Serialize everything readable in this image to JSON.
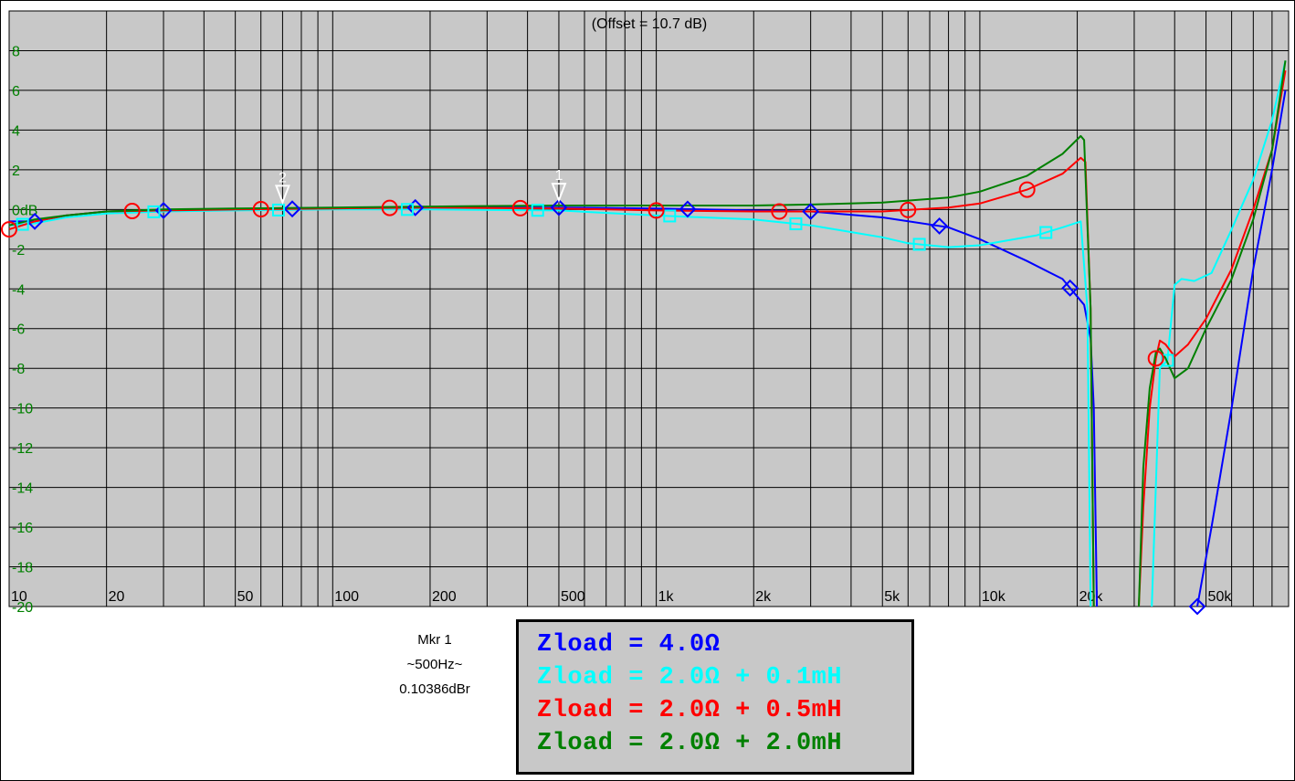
{
  "chart_data": {
    "type": "line",
    "title": "(Offset = 10.7 dB)",
    "xlabel": "",
    "ylabel": "",
    "x_scale": "log",
    "xlim": [
      10,
      90000
    ],
    "ylim": [
      -20,
      10
    ],
    "grid": true,
    "y_ticks": [
      {
        "value": 8,
        "label": "8"
      },
      {
        "value": 6,
        "label": "6"
      },
      {
        "value": 4,
        "label": "4"
      },
      {
        "value": 2,
        "label": "2"
      },
      {
        "value": 0,
        "label": "0dB"
      },
      {
        "value": -2,
        "label": "-2"
      },
      {
        "value": -4,
        "label": "-4"
      },
      {
        "value": -6,
        "label": "-6"
      },
      {
        "value": -8,
        "label": "-8"
      },
      {
        "value": -10,
        "label": "-10"
      },
      {
        "value": -12,
        "label": "-12"
      },
      {
        "value": -14,
        "label": "-14"
      },
      {
        "value": -16,
        "label": "-16"
      },
      {
        "value": -18,
        "label": "-18"
      },
      {
        "value": -20,
        "label": "-20"
      }
    ],
    "x_ticks": [
      {
        "value": 10,
        "label": "10"
      },
      {
        "value": 20,
        "label": "20"
      },
      {
        "value": 50,
        "label": "50"
      },
      {
        "value": 100,
        "label": "100"
      },
      {
        "value": 200,
        "label": "200"
      },
      {
        "value": 500,
        "label": "500"
      },
      {
        "value": 1000,
        "label": "1k"
      },
      {
        "value": 2000,
        "label": "2k"
      },
      {
        "value": 5000,
        "label": "5k"
      },
      {
        "value": 10000,
        "label": "10k"
      },
      {
        "value": 20000,
        "label": "20k"
      },
      {
        "value": 50000,
        "label": "50k"
      }
    ],
    "series": [
      {
        "name": "Zload = 4.0Ω",
        "color": "#0000ff",
        "marker": "diamond",
        "points": [
          [
            10,
            -0.6
          ],
          [
            12,
            -0.6
          ],
          [
            15,
            -0.3
          ],
          [
            20,
            -0.1
          ],
          [
            30,
            -0.05
          ],
          [
            50,
            0
          ],
          [
            100,
            0.05
          ],
          [
            200,
            0.1
          ],
          [
            500,
            0.1
          ],
          [
            1000,
            0.05
          ],
          [
            2000,
            -0.05
          ],
          [
            3000,
            -0.1
          ],
          [
            5000,
            -0.4
          ],
          [
            8000,
            -0.9
          ],
          [
            10000,
            -1.5
          ],
          [
            14000,
            -2.6
          ],
          [
            18000,
            -3.5
          ],
          [
            21000,
            -4.8
          ],
          [
            22000,
            -6.5
          ],
          [
            22500,
            -10
          ],
          [
            23000,
            -20
          ]
        ],
        "points_tail": [
          [
            47000,
            -20
          ],
          [
            52000,
            -16
          ],
          [
            60000,
            -10
          ],
          [
            70000,
            -3
          ],
          [
            80000,
            2
          ],
          [
            88000,
            6
          ]
        ],
        "marker_x": [
          12,
          30,
          75,
          180,
          500,
          1250,
          3000,
          7500,
          19000,
          47000
        ]
      },
      {
        "name": "Zload = 2.0Ω + 0.1mH",
        "color": "#00ffff",
        "marker": "square",
        "points": [
          [
            10,
            -0.8
          ],
          [
            12,
            -0.7
          ],
          [
            15,
            -0.4
          ],
          [
            20,
            -0.2
          ],
          [
            30,
            -0.1
          ],
          [
            50,
            -0.05
          ],
          [
            100,
            0
          ],
          [
            200,
            0
          ],
          [
            500,
            -0.05
          ],
          [
            1000,
            -0.3
          ],
          [
            2000,
            -0.5
          ],
          [
            3000,
            -0.8
          ],
          [
            5000,
            -1.4
          ],
          [
            6000,
            -1.7
          ],
          [
            8000,
            -1.9
          ],
          [
            10000,
            -1.8
          ],
          [
            15000,
            -1.3
          ],
          [
            18000,
            -0.9
          ],
          [
            20500,
            -0.6
          ],
          [
            21500,
            -5
          ],
          [
            22000,
            -20
          ]
        ],
        "points_tail": [
          [
            34000,
            -20
          ],
          [
            36000,
            -8
          ],
          [
            38000,
            -7.6
          ],
          [
            40000,
            -3.8
          ],
          [
            42000,
            -3.5
          ],
          [
            46000,
            -3.6
          ],
          [
            52000,
            -3.2
          ],
          [
            60000,
            -1
          ],
          [
            70000,
            1.5
          ],
          [
            80000,
            4.5
          ],
          [
            88000,
            7.5
          ]
        ],
        "marker_x": [
          11,
          28,
          68,
          170,
          430,
          1100,
          2700,
          6500,
          16000,
          38000
        ]
      },
      {
        "name": "Zload = 2.0Ω + 0.5mH",
        "color": "#ff0000",
        "marker": "circle",
        "points": [
          [
            10,
            -1
          ],
          [
            12,
            -0.6
          ],
          [
            15,
            -0.3
          ],
          [
            20,
            -0.1
          ],
          [
            30,
            -0.05
          ],
          [
            50,
            0
          ],
          [
            100,
            0.05
          ],
          [
            200,
            0.1
          ],
          [
            500,
            0.05
          ],
          [
            1000,
            -0.05
          ],
          [
            2000,
            -0.1
          ],
          [
            3000,
            -0.1
          ],
          [
            5000,
            -0.1
          ],
          [
            8000,
            0.1
          ],
          [
            10000,
            0.3
          ],
          [
            14000,
            1
          ],
          [
            18000,
            1.8
          ],
          [
            20500,
            2.6
          ],
          [
            21200,
            2.4
          ],
          [
            22000,
            -5
          ],
          [
            22500,
            -20
          ]
        ],
        "points_tail": [
          [
            31000,
            -20
          ],
          [
            32000,
            -15
          ],
          [
            33500,
            -10
          ],
          [
            35000,
            -7.5
          ],
          [
            36000,
            -6.6
          ],
          [
            37500,
            -6.8
          ],
          [
            40000,
            -7.4
          ],
          [
            44000,
            -6.8
          ],
          [
            50000,
            -5.5
          ],
          [
            60000,
            -3
          ],
          [
            70000,
            0
          ],
          [
            80000,
            3
          ],
          [
            88000,
            7
          ]
        ],
        "marker_x": [
          10,
          24,
          60,
          150,
          380,
          1000,
          2400,
          6000,
          14000,
          35000
        ]
      },
      {
        "name": "Zload = 2.0Ω + 2.0mH",
        "color": "#008000",
        "marker": "",
        "points": [
          [
            10,
            -0.8
          ],
          [
            12,
            -0.5
          ],
          [
            15,
            -0.3
          ],
          [
            20,
            -0.1
          ],
          [
            30,
            0
          ],
          [
            50,
            0.05
          ],
          [
            100,
            0.1
          ],
          [
            200,
            0.15
          ],
          [
            500,
            0.2
          ],
          [
            1000,
            0.2
          ],
          [
            2000,
            0.2
          ],
          [
            3000,
            0.25
          ],
          [
            5000,
            0.35
          ],
          [
            8000,
            0.6
          ],
          [
            10000,
            0.9
          ],
          [
            14000,
            1.7
          ],
          [
            18000,
            2.8
          ],
          [
            20500,
            3.7
          ],
          [
            21000,
            3.5
          ],
          [
            22000,
            -5
          ],
          [
            22500,
            -20
          ]
        ],
        "points_tail": [
          [
            31000,
            -20
          ],
          [
            32000,
            -13
          ],
          [
            33500,
            -9
          ],
          [
            35000,
            -7.2
          ],
          [
            36000,
            -7
          ],
          [
            37500,
            -7.5
          ],
          [
            40000,
            -8.5
          ],
          [
            44000,
            -8
          ],
          [
            50000,
            -6
          ],
          [
            60000,
            -3.5
          ],
          [
            70000,
            -0.5
          ],
          [
            80000,
            3
          ],
          [
            88000,
            7.5
          ]
        ],
        "marker_x": []
      }
    ],
    "markers": [
      {
        "label": "1",
        "x": 500,
        "y": 0.10386
      },
      {
        "label": "2",
        "x": 70,
        "y": 0
      }
    ]
  },
  "readout": {
    "line1": "Mkr 1",
    "line2": "~500Hz~",
    "line3": "0.10386dBr"
  },
  "legend": [
    {
      "text": "Zload = 4.0Ω",
      "color": "#0000ff"
    },
    {
      "text": "Zload = 2.0Ω + 0.1mH",
      "color": "#00ffff"
    },
    {
      "text": "Zload = 2.0Ω + 0.5mH",
      "color": "#ff0000"
    },
    {
      "text": "Zload = 2.0Ω + 2.0mH",
      "color": "#008000"
    }
  ],
  "colors": {
    "plot_background": "#c8c8c8",
    "grid": "#000000",
    "y_tick_labels": "#008000"
  }
}
